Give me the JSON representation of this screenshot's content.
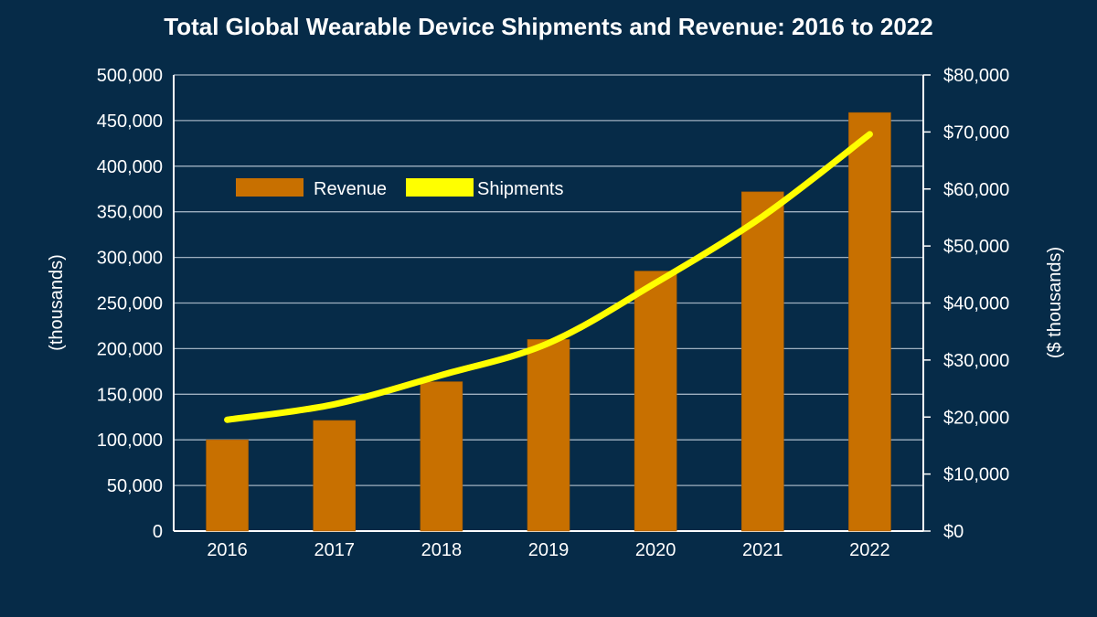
{
  "chart_data": {
    "type": "bar",
    "title": "Total Global Wearable Device Shipments and Revenue: 2016 to 2022",
    "categories": [
      "2016",
      "2017",
      "2018",
      "2019",
      "2020",
      "2021",
      "2022"
    ],
    "series": [
      {
        "name": "Revenue",
        "type": "bar",
        "axis": "right",
        "color": "#c87000",
        "values": [
          16000,
          19400,
          26200,
          33600,
          45600,
          59500,
          73400
        ]
      },
      {
        "name": "Shipments",
        "type": "line",
        "axis": "left",
        "color": "#ffff00",
        "values": [
          122000,
          139000,
          171000,
          206000,
          272000,
          345000,
          435000
        ]
      }
    ],
    "ylabel_left": "(thousands)",
    "ylabel_right": "($ thousands)",
    "ylim_left": [
      0,
      500000
    ],
    "ylim_right": [
      0,
      80000
    ],
    "left_ticks": [
      "0",
      "50,000",
      "100,000",
      "150,000",
      "200,000",
      "250,000",
      "300,000",
      "350,000",
      "400,000",
      "450,000",
      "500,000"
    ],
    "right_ticks": [
      "$0",
      "$10,000",
      "$20,000",
      "$30,000",
      "$40,000",
      "$50,000",
      "$60,000",
      "$70,000",
      "$80,000"
    ],
    "grid": true,
    "legend": "top-left",
    "background": "#062b48"
  }
}
